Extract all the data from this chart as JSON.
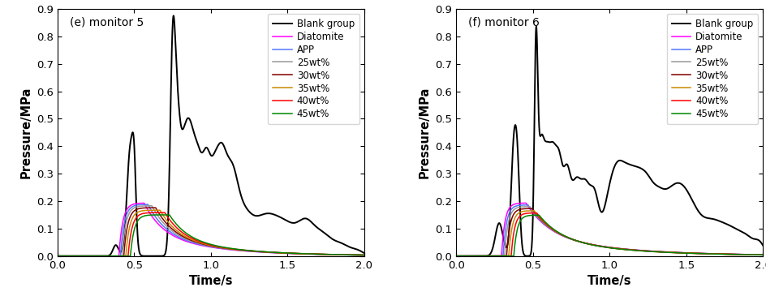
{
  "panel_e_title": "(e) monitor 5",
  "panel_f_title": "(f) monitor 6",
  "xlabel": "Time/s",
  "ylabel": "Pressure/MPa",
  "xlim": [
    0.0,
    2.0
  ],
  "ylim": [
    0.0,
    0.9
  ],
  "yticks": [
    0.0,
    0.1,
    0.2,
    0.3,
    0.4,
    0.5,
    0.6,
    0.7,
    0.8,
    0.9
  ],
  "xticks": [
    0.0,
    0.5,
    1.0,
    1.5,
    2.0
  ],
  "legend_labels": [
    "Blank group",
    "Diatomite",
    "APP",
    "25wt%",
    "30wt%",
    "35wt%",
    "40wt%",
    "45wt%"
  ],
  "legend_colors": [
    "#000000",
    "#ff00ff",
    "#5577ff",
    "#999999",
    "#800000",
    "#cc8800",
    "#ff0000",
    "#008800"
  ],
  "line_width": 1.1,
  "blank_lw": 1.4
}
